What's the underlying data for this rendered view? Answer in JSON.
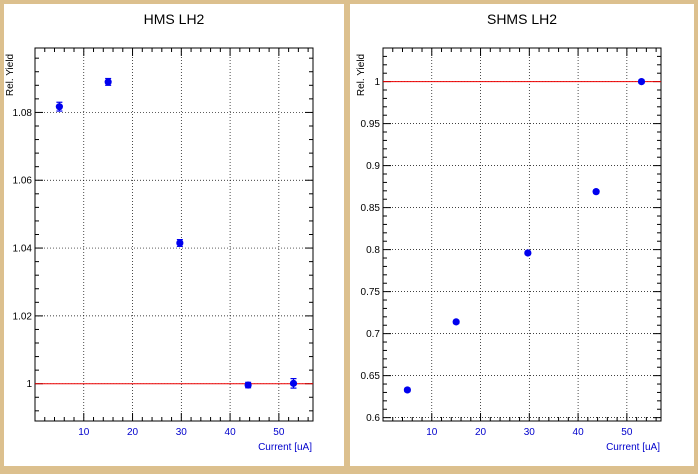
{
  "colors": {
    "frame": "#dcc08e",
    "panel_bg": "#ffffff",
    "marker": "#0000ee",
    "reference_line": "#ee0000",
    "tick_label": "#0000cc",
    "title": "#000000"
  },
  "chart_data": [
    {
      "type": "scatter",
      "title": "HMS LH2",
      "xlabel": "Current [uA]",
      "ylabel": "Rel. Yield",
      "xlim": [
        0,
        57
      ],
      "ylim": [
        0.989,
        1.099
      ],
      "xticks": [
        10,
        20,
        30,
        40,
        50
      ],
      "yticks": [
        1.0,
        1.02,
        1.04,
        1.06,
        1.08
      ],
      "ytick_labels": [
        "1",
        "1.02",
        "1.04",
        "1.06",
        "1.08"
      ],
      "grid": true,
      "reference_line": 1.0,
      "x": [
        5,
        15,
        29.7,
        43.7,
        53
      ],
      "y": [
        1.0817,
        1.089,
        1.0415,
        0.9996,
        1.0001
      ],
      "y_err": [
        0.0013,
        0.001,
        0.001,
        0.0008,
        0.0014
      ]
    },
    {
      "type": "scatter",
      "title": "SHMS LH2",
      "xlabel": "Current [uA]",
      "ylabel": "Rel. Yield",
      "xlim": [
        0,
        57
      ],
      "ylim": [
        0.596,
        1.04
      ],
      "xticks": [
        10,
        20,
        30,
        40,
        50
      ],
      "yticks": [
        0.6,
        0.65,
        0.7,
        0.75,
        0.8,
        0.85,
        0.9,
        0.95,
        1.0
      ],
      "ytick_labels": [
        "0.6",
        "0.65",
        "0.7",
        "0.75",
        "0.8",
        "0.85",
        "0.9",
        "0.95",
        "1"
      ],
      "grid": true,
      "reference_line": 1.0,
      "x": [
        5,
        15,
        29.7,
        43.7,
        53
      ],
      "y": [
        0.633,
        0.714,
        0.796,
        0.869,
        1.0
      ],
      "y_err": [
        0.002,
        0.002,
        0.002,
        0.002,
        0.002
      ]
    }
  ]
}
